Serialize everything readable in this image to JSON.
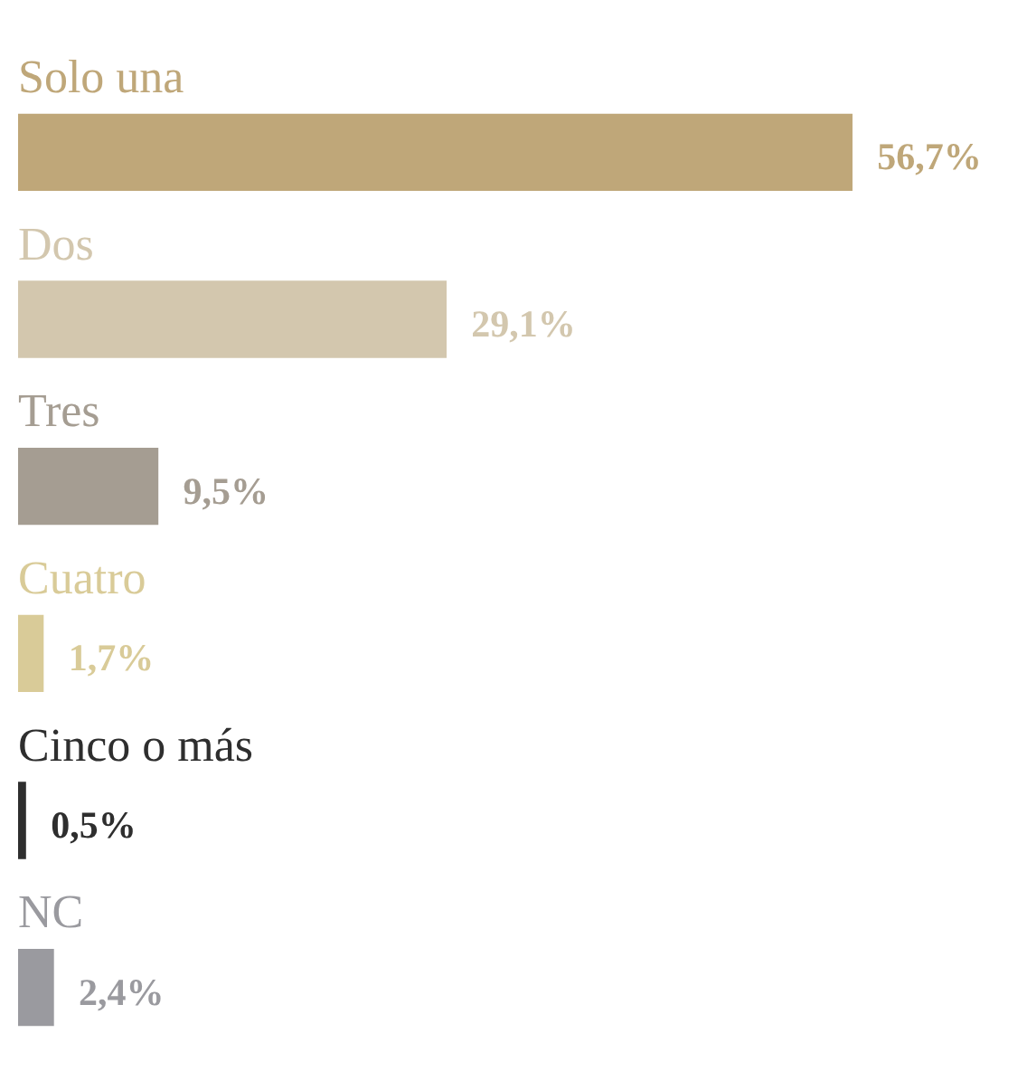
{
  "chart_data": {
    "type": "bar",
    "orientation": "horizontal",
    "tick_labels": false,
    "categories": [
      "Solo una",
      "Dos",
      "Tres",
      "Cuatro",
      "Cinco o más",
      "NC"
    ],
    "values": [
      56.7,
      29.1,
      9.5,
      1.7,
      0.5,
      2.4
    ],
    "colors": [
      "#bfa779",
      "#d3c7ae",
      "#a59d92",
      "#d9cb98",
      "#2e2e2e",
      "#9a9a9f"
    ],
    "value_labels": [
      "56,7%",
      "29,1%",
      "9,5%",
      "1,7%",
      "0,5%",
      "2,4%"
    ]
  }
}
